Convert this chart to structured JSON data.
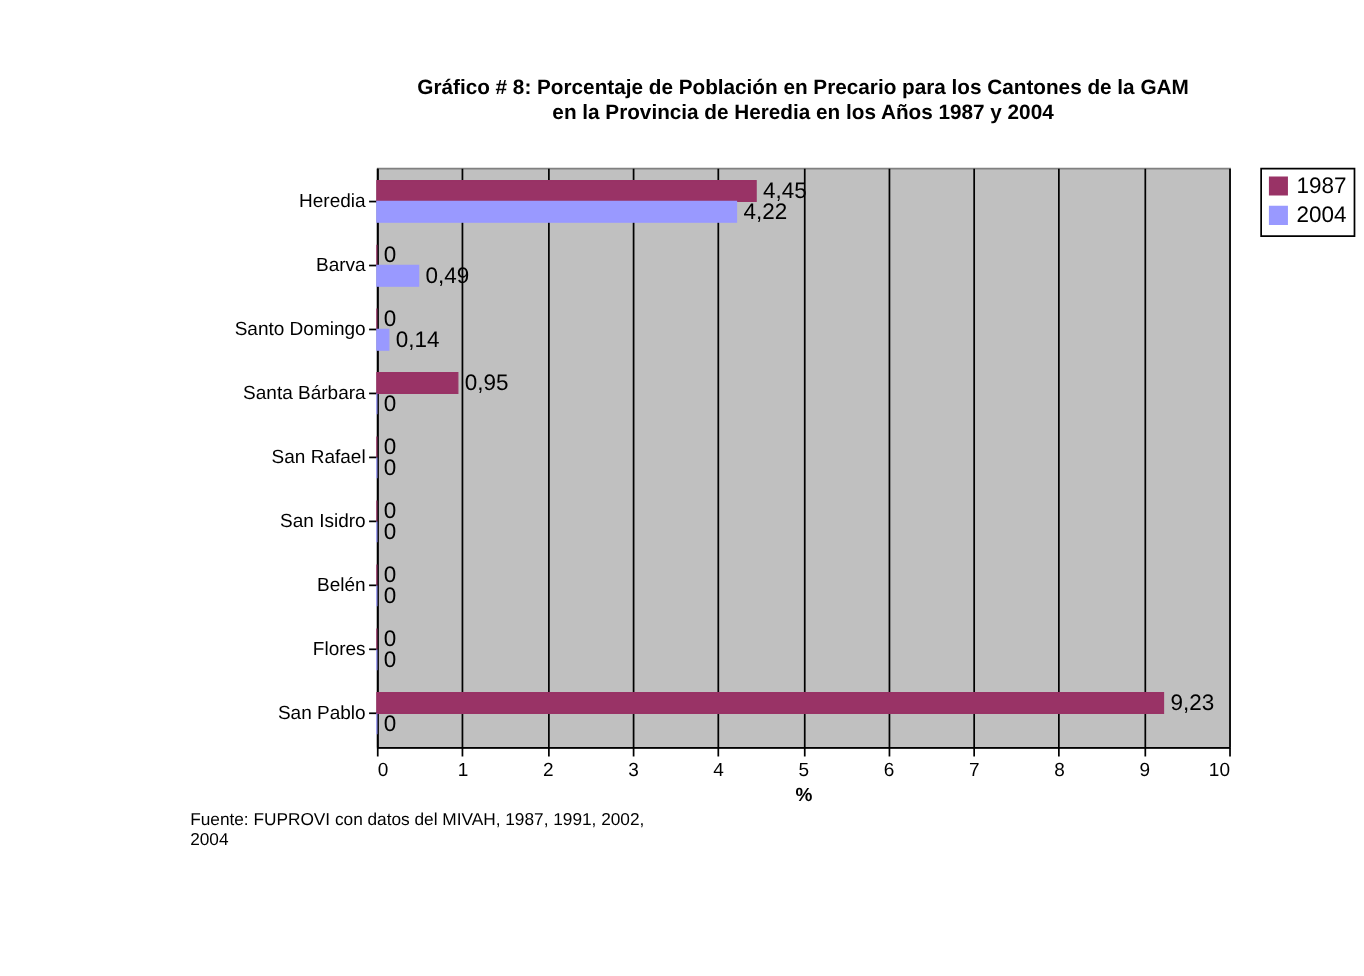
{
  "chart_data": {
    "type": "bar",
    "orientation": "horizontal",
    "title": "Gráfico # 8: Porcentaje de Población en Precario para los Cantones de la GAM\nen la Provincia de Heredia en los Años 1987 y 2004",
    "categories": [
      "Heredia",
      "Barva",
      "Santo Domingo",
      "Santa Bárbara",
      "San Rafael",
      "San Isidro",
      "Belén",
      "Flores",
      "San Pablo"
    ],
    "series": [
      {
        "name": "1987",
        "color": "#993366",
        "values": [
          4.45,
          0,
          0,
          0.95,
          0,
          0,
          0,
          0,
          9.23
        ],
        "value_labels": [
          "4,45",
          "0",
          "0",
          "0,95",
          "0",
          "0",
          "0",
          "0",
          "9,23"
        ]
      },
      {
        "name": "2004",
        "color": "#9999ff",
        "values": [
          4.22,
          0.49,
          0.14,
          0,
          0,
          0,
          0,
          0,
          0
        ],
        "value_labels": [
          "4,22",
          "0,49",
          "0,14",
          "0",
          "0",
          "0",
          "0",
          "0",
          "0"
        ]
      }
    ],
    "xlabel": "%",
    "xlim": [
      0,
      10
    ],
    "xticks": [
      0,
      1,
      2,
      3,
      4,
      5,
      6,
      7,
      8,
      9,
      10
    ],
    "grid": "x",
    "legend": "right",
    "annotations": [
      "Fuente: FUPROVI con datos del MIVAH, 1987, 1991, 2002,\n2004"
    ]
  }
}
